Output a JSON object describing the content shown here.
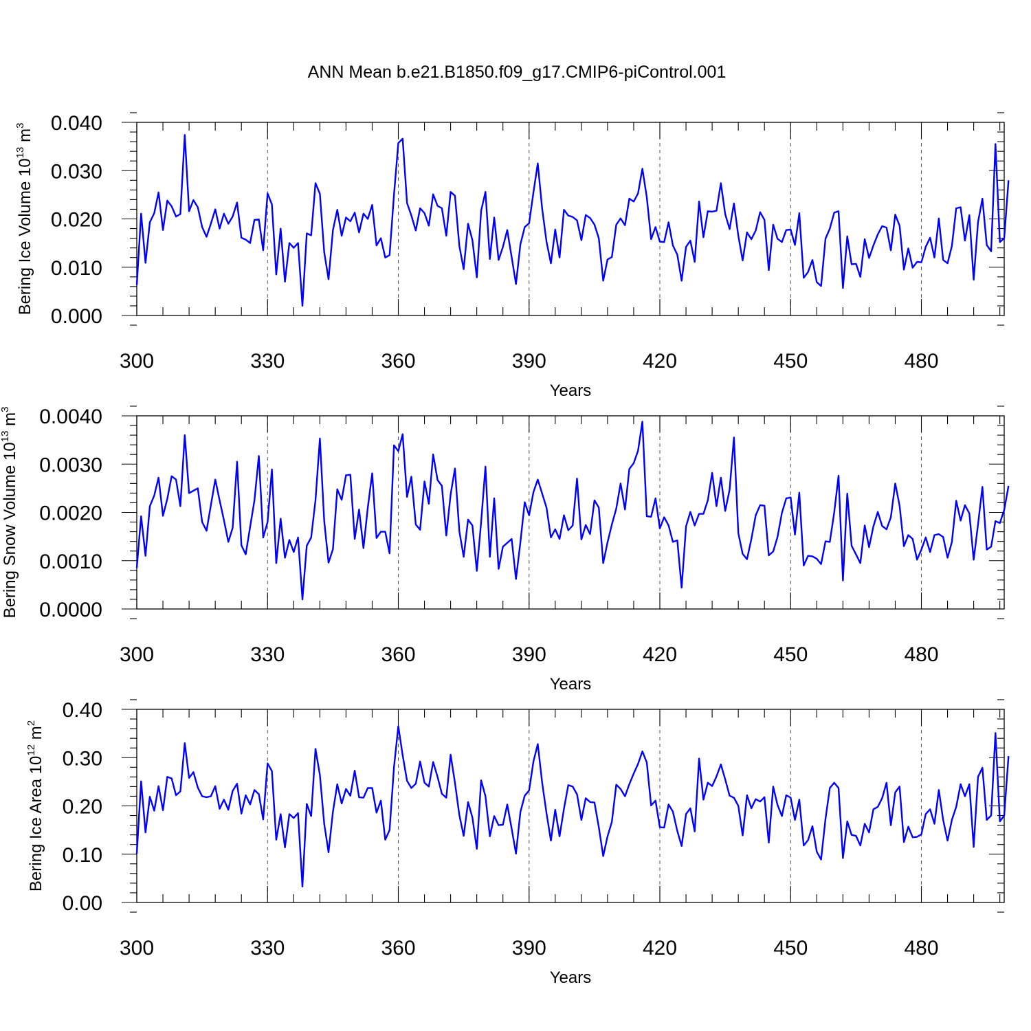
{
  "title": "ANN Mean b.e21.B1850.f09_g17.CMIP6-piControl.001",
  "chart_data": [
    {
      "type": "line",
      "ylabel": {
        "base": "Bering Ice Volume 10",
        "exp1": "13",
        "mid": " m",
        "exp2": "3"
      },
      "xlabel": "Years",
      "xlim": [
        300,
        499
      ],
      "ylim": [
        0.0,
        0.04
      ],
      "xticks": [
        300,
        330,
        360,
        390,
        420,
        450,
        480
      ],
      "xtick_labels": [
        "300",
        "330",
        "360",
        "390",
        "420",
        "450",
        "480"
      ],
      "yticks": [
        0.0,
        0.01,
        0.02,
        0.03,
        0.04
      ],
      "ytick_labels": [
        "0.000",
        "0.010",
        "0.020",
        "0.030",
        "0.040"
      ],
      "series": [
        {
          "x_start": 300,
          "values": [
            0.0063,
            0.0211,
            0.0109,
            0.0193,
            0.0212,
            0.0255,
            0.0177,
            0.0238,
            0.0226,
            0.0205,
            0.021,
            0.0374,
            0.0216,
            0.0239,
            0.0224,
            0.0183,
            0.0163,
            0.019,
            0.022,
            0.018,
            0.0211,
            0.019,
            0.0205,
            0.0234,
            0.0161,
            0.0157,
            0.015,
            0.0198,
            0.0199,
            0.0135,
            0.0253,
            0.023,
            0.0085,
            0.018,
            0.007,
            0.015,
            0.014,
            0.015,
            0.002,
            0.017,
            0.0166,
            0.0274,
            0.0252,
            0.0131,
            0.0075,
            0.0177,
            0.0219,
            0.0165,
            0.0203,
            0.0195,
            0.0213,
            0.0172,
            0.0211,
            0.02,
            0.0229,
            0.0145,
            0.016,
            0.012,
            0.0125,
            0.025,
            0.0357,
            0.0366,
            0.0233,
            0.0207,
            0.0176,
            0.0222,
            0.0212,
            0.0186,
            0.0251,
            0.0227,
            0.0222,
            0.0165,
            0.0256,
            0.0248,
            0.0144,
            0.0096,
            0.019,
            0.0156,
            0.0079,
            0.0217,
            0.0256,
            0.0117,
            0.0203,
            0.0115,
            0.0142,
            0.0177,
            0.0121,
            0.0065,
            0.0147,
            0.0183,
            0.0191,
            0.0255,
            0.0315,
            0.0221,
            0.0153,
            0.0108,
            0.0178,
            0.012,
            0.0219,
            0.0207,
            0.0204,
            0.0197,
            0.0156,
            0.0208,
            0.0202,
            0.0188,
            0.016,
            0.0072,
            0.0116,
            0.0121,
            0.0188,
            0.0201,
            0.0187,
            0.0242,
            0.0236,
            0.0253,
            0.0304,
            0.0245,
            0.0158,
            0.0183,
            0.0153,
            0.0152,
            0.0193,
            0.0145,
            0.0126,
            0.0072,
            0.0142,
            0.0155,
            0.0111,
            0.0236,
            0.0162,
            0.0216,
            0.0215,
            0.0217,
            0.0274,
            0.021,
            0.0179,
            0.0232,
            0.0165,
            0.0114,
            0.0172,
            0.0158,
            0.0176,
            0.0214,
            0.0198,
            0.0094,
            0.0188,
            0.0159,
            0.0152,
            0.0177,
            0.0178,
            0.0146,
            0.0212,
            0.0078,
            0.009,
            0.0115,
            0.0069,
            0.0061,
            0.0159,
            0.018,
            0.0213,
            0.0216,
            0.0057,
            0.0164,
            0.0106,
            0.0107,
            0.008,
            0.0158,
            0.0119,
            0.0145,
            0.0168,
            0.0185,
            0.0182,
            0.0135,
            0.0209,
            0.0186,
            0.0095,
            0.0139,
            0.0099,
            0.0111,
            0.011,
            0.0142,
            0.0161,
            0.012,
            0.0201,
            0.0115,
            0.0108,
            0.0144,
            0.0222,
            0.0224,
            0.0155,
            0.0208,
            0.0074,
            0.0193,
            0.0242,
            0.0146,
            0.0133,
            0.0355,
            0.0152,
            0.016,
            0.028
          ]
        }
      ]
    },
    {
      "type": "line",
      "ylabel": {
        "base": "Bering Snow Volume 10",
        "exp1": "13",
        "mid": " m",
        "exp2": "3"
      },
      "xlabel": "Years",
      "xlim": [
        300,
        499
      ],
      "ylim": [
        0.0,
        0.004
      ],
      "xticks": [
        300,
        330,
        360,
        390,
        420,
        450,
        480
      ],
      "xtick_labels": [
        "300",
        "330",
        "360",
        "390",
        "420",
        "450",
        "480"
      ],
      "yticks": [
        0.0,
        0.001,
        0.002,
        0.003,
        0.004
      ],
      "ytick_labels": [
        "0.0000",
        "0.0010",
        "0.0020",
        "0.0030",
        "0.0040"
      ],
      "series": [
        {
          "x_start": 300,
          "values": [
            0.00085,
            0.00192,
            0.0011,
            0.00213,
            0.00235,
            0.00272,
            0.00193,
            0.00228,
            0.00275,
            0.00268,
            0.00213,
            0.0036,
            0.0024,
            0.00245,
            0.0025,
            0.0018,
            0.00162,
            0.00215,
            0.00268,
            0.00225,
            0.00184,
            0.00139,
            0.00168,
            0.00305,
            0.00132,
            0.00113,
            0.0017,
            0.00225,
            0.00317,
            0.00148,
            0.0018,
            0.00289,
            0.00095,
            0.00187,
            0.00106,
            0.00143,
            0.00118,
            0.00148,
            0.0002,
            0.00131,
            0.00148,
            0.00225,
            0.00353,
            0.00182,
            0.00096,
            0.00124,
            0.00248,
            0.00226,
            0.00277,
            0.00278,
            0.00145,
            0.00206,
            0.00126,
            0.0021,
            0.00281,
            0.00147,
            0.0016,
            0.0016,
            0.00115,
            0.00339,
            0.00327,
            0.00362,
            0.00232,
            0.00274,
            0.00175,
            0.00164,
            0.00264,
            0.00218,
            0.0032,
            0.00267,
            0.00255,
            0.00152,
            0.00237,
            0.00291,
            0.00161,
            0.00108,
            0.00185,
            0.00173,
            0.00079,
            0.0018,
            0.00295,
            0.00108,
            0.00229,
            0.00083,
            0.00129,
            0.00137,
            0.00145,
            0.00062,
            0.00138,
            0.00221,
            0.00194,
            0.00242,
            0.00268,
            0.00239,
            0.0021,
            0.00148,
            0.00165,
            0.00145,
            0.00194,
            0.00163,
            0.00173,
            0.0027,
            0.00144,
            0.00174,
            0.00155,
            0.00225,
            0.0021,
            0.00095,
            0.00138,
            0.00175,
            0.00208,
            0.0026,
            0.00206,
            0.0029,
            0.00302,
            0.00328,
            0.00388,
            0.00192,
            0.00191,
            0.00229,
            0.00167,
            0.0019,
            0.00173,
            0.00139,
            0.00142,
            0.00044,
            0.00171,
            0.00201,
            0.00173,
            0.00197,
            0.00197,
            0.00225,
            0.00282,
            0.00213,
            0.00272,
            0.00203,
            0.00247,
            0.00355,
            0.00157,
            0.00114,
            0.00103,
            0.00145,
            0.00194,
            0.00215,
            0.00214,
            0.00111,
            0.00119,
            0.00149,
            0.00199,
            0.00229,
            0.00231,
            0.00154,
            0.00241,
            0.0009,
            0.0011,
            0.00109,
            0.00104,
            0.00093,
            0.0014,
            0.00139,
            0.002,
            0.00276,
            0.00059,
            0.00239,
            0.00131,
            0.00113,
            0.00095,
            0.00173,
            0.00128,
            0.00171,
            0.00201,
            0.00172,
            0.00165,
            0.0019,
            0.0026,
            0.00214,
            0.0013,
            0.00153,
            0.00145,
            0.00102,
            0.00123,
            0.00148,
            0.00118,
            0.00153,
            0.00155,
            0.00149,
            0.00106,
            0.00139,
            0.00224,
            0.00183,
            0.00215,
            0.00198,
            0.00102,
            0.00175,
            0.00253,
            0.00123,
            0.00129,
            0.00182,
            0.00178,
            0.00205,
            0.00255
          ]
        }
      ]
    },
    {
      "type": "line",
      "ylabel": {
        "base": "Bering Ice Area 10",
        "exp1": "12",
        "mid": " m",
        "exp2": "2"
      },
      "xlabel": "Years",
      "xlim": [
        300,
        499
      ],
      "ylim": [
        0.0,
        0.4
      ],
      "xticks": [
        300,
        330,
        360,
        390,
        420,
        450,
        480
      ],
      "xtick_labels": [
        "300",
        "330",
        "360",
        "390",
        "420",
        "450",
        "480"
      ],
      "yticks": [
        0.0,
        0.1,
        0.2,
        0.3,
        0.4
      ],
      "ytick_labels": [
        "0.00",
        "0.10",
        "0.20",
        "0.30",
        "0.40"
      ],
      "series": [
        {
          "x_start": 300,
          "values": [
            0.101,
            0.251,
            0.145,
            0.219,
            0.19,
            0.241,
            0.191,
            0.26,
            0.257,
            0.222,
            0.23,
            0.33,
            0.258,
            0.27,
            0.238,
            0.22,
            0.218,
            0.22,
            0.241,
            0.194,
            0.213,
            0.192,
            0.231,
            0.246,
            0.184,
            0.222,
            0.203,
            0.233,
            0.224,
            0.172,
            0.288,
            0.272,
            0.13,
            0.183,
            0.114,
            0.183,
            0.175,
            0.185,
            0.033,
            0.204,
            0.179,
            0.318,
            0.264,
            0.163,
            0.104,
            0.188,
            0.245,
            0.205,
            0.235,
            0.221,
            0.273,
            0.218,
            0.217,
            0.237,
            0.237,
            0.186,
            0.211,
            0.13,
            0.15,
            0.28,
            0.365,
            0.305,
            0.252,
            0.237,
            0.246,
            0.292,
            0.248,
            0.24,
            0.291,
            0.26,
            0.225,
            0.217,
            0.306,
            0.248,
            0.181,
            0.138,
            0.208,
            0.176,
            0.111,
            0.253,
            0.22,
            0.137,
            0.179,
            0.16,
            0.161,
            0.203,
            0.153,
            0.101,
            0.187,
            0.221,
            0.232,
            0.292,
            0.328,
            0.248,
            0.185,
            0.128,
            0.192,
            0.137,
            0.194,
            0.243,
            0.24,
            0.224,
            0.171,
            0.216,
            0.208,
            0.207,
            0.156,
            0.096,
            0.137,
            0.167,
            0.244,
            0.235,
            0.22,
            0.245,
            0.267,
            0.287,
            0.313,
            0.29,
            0.201,
            0.211,
            0.156,
            0.155,
            0.203,
            0.188,
            0.148,
            0.117,
            0.183,
            0.195,
            0.147,
            0.298,
            0.213,
            0.248,
            0.241,
            0.261,
            0.286,
            0.255,
            0.221,
            0.217,
            0.2,
            0.139,
            0.222,
            0.195,
            0.214,
            0.209,
            0.218,
            0.124,
            0.24,
            0.202,
            0.179,
            0.222,
            0.217,
            0.171,
            0.213,
            0.118,
            0.129,
            0.158,
            0.105,
            0.089,
            0.173,
            0.237,
            0.248,
            0.237,
            0.092,
            0.168,
            0.14,
            0.138,
            0.118,
            0.163,
            0.145,
            0.193,
            0.198,
            0.216,
            0.248,
            0.16,
            0.228,
            0.24,
            0.125,
            0.157,
            0.135,
            0.136,
            0.141,
            0.183,
            0.193,
            0.163,
            0.233,
            0.171,
            0.128,
            0.171,
            0.198,
            0.245,
            0.22,
            0.245,
            0.115,
            0.26,
            0.279,
            0.171,
            0.18,
            0.351,
            0.168,
            0.18,
            0.303
          ]
        }
      ]
    }
  ]
}
